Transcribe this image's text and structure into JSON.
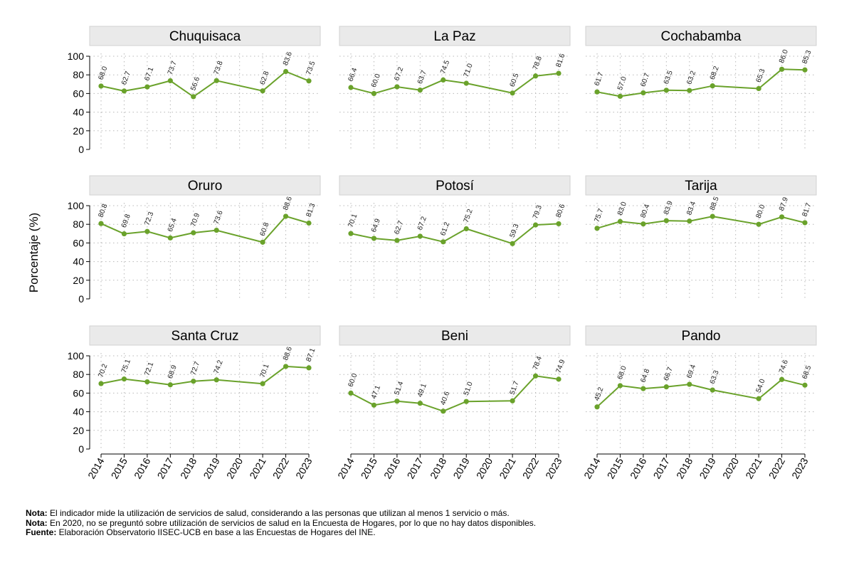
{
  "chart_data": {
    "type": "line",
    "ylabel": "Porcentaje (%)",
    "ylim": [
      0,
      100
    ],
    "yticks": [
      0,
      20,
      40,
      60,
      80,
      100
    ],
    "categories": [
      "2014",
      "2015",
      "2016",
      "2017",
      "2018",
      "2019",
      "2020",
      "2021",
      "2022",
      "2023"
    ],
    "grid": true,
    "series_color": "#6aa22b",
    "panels": [
      {
        "name": "Chuquisaca",
        "values": [
          68.0,
          62.7,
          67.1,
          73.7,
          56.6,
          73.8,
          null,
          62.8,
          83.6,
          73.5
        ],
        "labels": [
          "68.0",
          "62.7",
          "67.1",
          "73.7",
          "56.6",
          "73.8",
          null,
          "62.8",
          "83.6",
          "73.5"
        ]
      },
      {
        "name": "La Paz",
        "values": [
          66.4,
          60.0,
          67.2,
          63.7,
          74.5,
          71.0,
          null,
          60.5,
          78.8,
          81.6
        ],
        "labels": [
          "66.4",
          "60.0",
          "67.2",
          "63.7",
          "74.5",
          "71.0",
          null,
          "60.5",
          "78.8",
          "81.6"
        ]
      },
      {
        "name": "Cochabamba",
        "values": [
          61.7,
          57.0,
          60.7,
          63.5,
          63.2,
          68.2,
          null,
          65.3,
          86.0,
          85.3
        ],
        "labels": [
          "61.7",
          "57.0",
          "60.7",
          "63.5",
          "63.2",
          "68.2",
          null,
          "65.3",
          "86.0",
          "85.3"
        ]
      },
      {
        "name": "Oruro",
        "values": [
          80.8,
          69.8,
          72.3,
          65.4,
          70.9,
          73.6,
          null,
          60.8,
          88.6,
          81.3
        ],
        "labels": [
          "80.8",
          "69.8",
          "72.3",
          "65.4",
          "70.9",
          "73.6",
          null,
          "60.8",
          "88.6",
          "81.3"
        ]
      },
      {
        "name": "Potosí",
        "values": [
          70.1,
          64.9,
          62.7,
          67.2,
          61.2,
          75.2,
          null,
          59.3,
          79.3,
          80.6
        ],
        "labels": [
          "70.1",
          "64.9",
          "62.7",
          "67.2",
          "61.2",
          "75.2",
          null,
          "59.3",
          "79.3",
          "80.6"
        ]
      },
      {
        "name": "Tarija",
        "values": [
          75.7,
          83.0,
          80.4,
          83.9,
          83.4,
          88.5,
          null,
          80.0,
          87.9,
          81.7
        ],
        "labels": [
          "75.7",
          "83.0",
          "80.4",
          "83.9",
          "83.4",
          "88.5",
          null,
          "80.0",
          "87.9",
          "81.7"
        ]
      },
      {
        "name": "Santa Cruz",
        "values": [
          70.2,
          75.1,
          72.1,
          68.9,
          72.7,
          74.2,
          null,
          70.1,
          88.6,
          87.1
        ],
        "labels": [
          "70.2",
          "75.1",
          "72.1",
          "68.9",
          "72.7",
          "74.2",
          null,
          "70.1",
          "88.6",
          "87.1"
        ]
      },
      {
        "name": "Beni",
        "values": [
          60.0,
          47.1,
          51.4,
          49.1,
          40.6,
          51.0,
          null,
          51.7,
          78.4,
          74.9
        ],
        "labels": [
          "60.0",
          "47.1",
          "51.4",
          "49.1",
          "40.6",
          "51.0",
          null,
          "51.7",
          "78.4",
          "74.9"
        ]
      },
      {
        "name": "Pando",
        "values": [
          45.2,
          68.0,
          64.8,
          66.7,
          69.4,
          63.3,
          null,
          54.0,
          74.6,
          68.5
        ],
        "labels": [
          "45.2",
          "68.0",
          "64.8",
          "66.7",
          "69.4",
          "63.3",
          null,
          "54.0",
          "74.6",
          "68.5"
        ]
      }
    ]
  },
  "notes": [
    {
      "label": "Nota:",
      "text": " El indicador mide la utilización de servicios de salud, considerando a las personas que utilizan al menos 1 servicio o más."
    },
    {
      "label": "Nota:",
      "text": " En 2020, no se preguntó sobre utilización de servicios de salud en la Encuesta de Hogares, por lo que no hay datos disponibles."
    },
    {
      "label": "Fuente:",
      "text": " Elaboración Observatorio IISEC-UCB en base a las Encuestas de Hogares del INE."
    }
  ]
}
